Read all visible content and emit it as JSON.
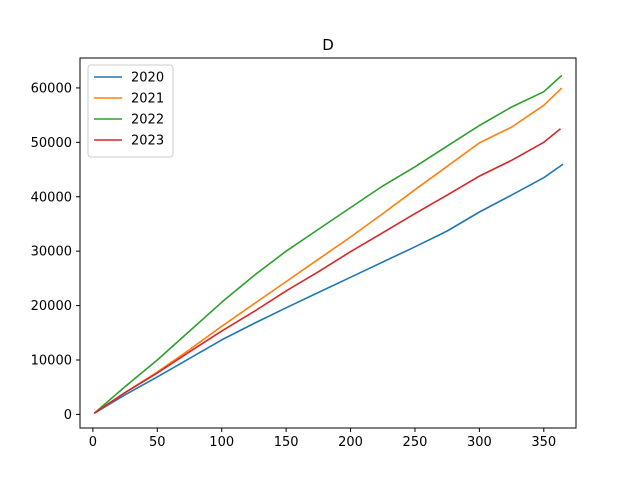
{
  "chart_data": {
    "type": "line",
    "title": "D",
    "xlabel": "",
    "ylabel": "",
    "xlim": [
      -10,
      375
    ],
    "ylim": [
      -2500,
      65500
    ],
    "xticks": [
      0,
      50,
      100,
      150,
      200,
      250,
      300,
      350
    ],
    "yticks": [
      0,
      10000,
      20000,
      30000,
      40000,
      50000,
      60000
    ],
    "xtick_labels": [
      "0",
      "50",
      "100",
      "150",
      "200",
      "250",
      "300",
      "350"
    ],
    "ytick_labels": [
      "0",
      "10000",
      "20000",
      "30000",
      "40000",
      "50000",
      "60000"
    ],
    "grid": false,
    "legend_position": "top-left",
    "series": [
      {
        "name": "2020",
        "color": "#1f77b4",
        "x": [
          1,
          25,
          50,
          75,
          100,
          125,
          150,
          175,
          200,
          225,
          250,
          275,
          300,
          325,
          350,
          365
        ],
        "y": [
          200,
          3600,
          6900,
          10300,
          13700,
          16700,
          19600,
          22400,
          25200,
          28000,
          30800,
          33700,
          37200,
          40300,
          43500,
          46000
        ]
      },
      {
        "name": "2021",
        "color": "#ff7f0e",
        "x": [
          1,
          25,
          50,
          75,
          100,
          125,
          150,
          175,
          200,
          225,
          250,
          275,
          300,
          325,
          350,
          364
        ],
        "y": [
          200,
          4000,
          7800,
          11900,
          16200,
          20300,
          24400,
          28500,
          32600,
          36900,
          41300,
          45600,
          49900,
          52800,
          56800,
          60000
        ]
      },
      {
        "name": "2022",
        "color": "#2ca02c",
        "x": [
          1,
          25,
          50,
          75,
          100,
          125,
          150,
          175,
          200,
          225,
          250,
          275,
          300,
          325,
          350,
          364
        ],
        "y": [
          200,
          5100,
          10000,
          15300,
          20600,
          25500,
          30000,
          34000,
          38000,
          42000,
          45500,
          49300,
          53100,
          56500,
          59300,
          62300
        ]
      },
      {
        "name": "2023",
        "color": "#d62728",
        "x": [
          1,
          25,
          50,
          75,
          100,
          125,
          150,
          175,
          200,
          225,
          250,
          275,
          300,
          325,
          350,
          363
        ],
        "y": [
          200,
          4000,
          7600,
          11500,
          15300,
          18900,
          22700,
          26200,
          29900,
          33400,
          36900,
          40300,
          43800,
          46700,
          50000,
          52500
        ]
      }
    ]
  }
}
